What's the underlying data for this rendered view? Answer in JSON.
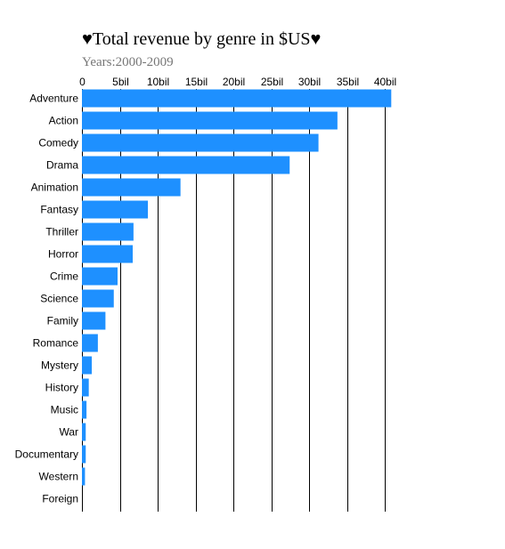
{
  "chart_data": {
    "type": "bar",
    "orientation": "horizontal",
    "title": "♥Total revenue by genre in $US♥",
    "subtitle": "Years:2000-2009",
    "xlabel": "",
    "ylabel": "",
    "xlim": [
      0,
      41.0
    ],
    "x_ticks": [
      0,
      5,
      10,
      15,
      20,
      25,
      30,
      35,
      40
    ],
    "x_tick_labels": [
      "0",
      "5bil",
      "10bil",
      "15bil",
      "20bil",
      "25bil",
      "30bil",
      "35bil",
      "40bil"
    ],
    "x_axis_position": "top",
    "grid": true,
    "bar_color": "#1e90ff",
    "categories": [
      "Adventure",
      "Action",
      "Comedy",
      "Drama",
      "Animation",
      "Fantasy",
      "Thriller",
      "Horror",
      "Crime",
      "Science",
      "Family",
      "Romance",
      "Mystery",
      "History",
      "Music",
      "War",
      "Documentary",
      "Western",
      "Foreign"
    ],
    "values": [
      40.8,
      33.7,
      31.2,
      27.4,
      13.0,
      8.7,
      6.8,
      6.7,
      4.7,
      4.2,
      3.1,
      2.1,
      1.3,
      0.9,
      0.6,
      0.5,
      0.5,
      0.4,
      0.0
    ]
  }
}
